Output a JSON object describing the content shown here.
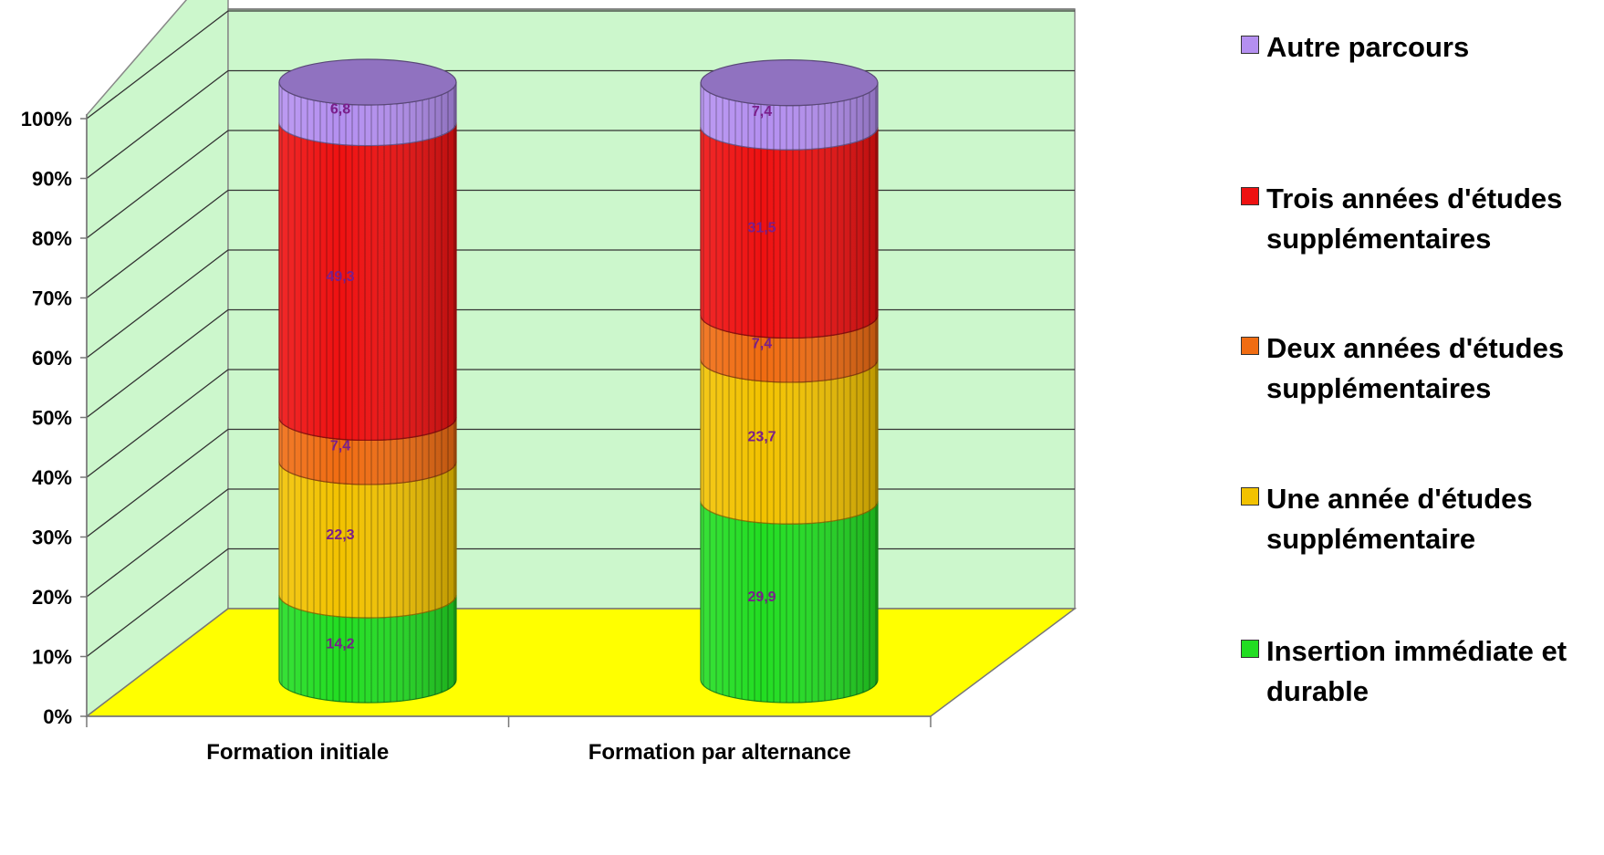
{
  "chart_data": {
    "type": "bar",
    "stacked": true,
    "percent": true,
    "three_d": "cylinder",
    "categories": [
      "Formation initiale",
      "Formation par alternance"
    ],
    "yticks": [
      "0%",
      "10%",
      "20%",
      "30%",
      "40%",
      "50%",
      "60%",
      "70%",
      "80%",
      "90%",
      "100%"
    ],
    "ylim": [
      0,
      100
    ],
    "grid": true,
    "legend_position": "right",
    "series": [
      {
        "name": "Insertion immédiate et durable",
        "color": "#22dd22",
        "values": [
          14.2,
          29.9
        ],
        "labels": [
          "14,2",
          "29,9"
        ]
      },
      {
        "name": "Une année d'études supplémentaire",
        "color": "#f2c200",
        "values": [
          22.3,
          23.7
        ],
        "labels": [
          "22,3",
          "23,7"
        ]
      },
      {
        "name": "Deux années d'études supplémentaires",
        "color": "#f06c12",
        "values": [
          7.4,
          7.4
        ],
        "labels": [
          "7,4",
          "7,4"
        ]
      },
      {
        "name": "Trois années d'études supplémentaires",
        "color": "#ee1111",
        "values": [
          49.3,
          31.5
        ],
        "labels": [
          "49,3",
          "31,5"
        ]
      },
      {
        "name": "Autre parcours",
        "color": "#b48ff0",
        "values": [
          6.8,
          7.4
        ],
        "labels": [
          "6,8",
          "7,4"
        ]
      }
    ],
    "wall_color": "#ccf7cc",
    "floor_color": "#ffff00"
  }
}
